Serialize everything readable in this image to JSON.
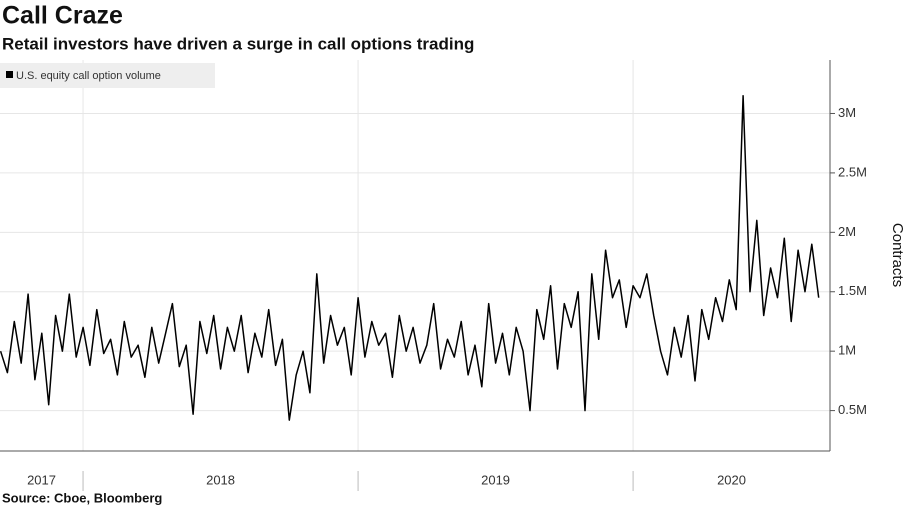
{
  "chart_data": {
    "type": "line",
    "title": "Call Craze",
    "subtitle": "Retail investors have driven a surge in call options trading",
    "y_axis_label": "Contracts",
    "source": "Source: Cboe, Bloomberg",
    "legend": "top-left",
    "grid": true,
    "xlim": [
      2017.698,
      2020.716
    ],
    "xticks": [
      2017,
      2018,
      2019,
      2020
    ],
    "ylim": [
      160000,
      3450000
    ],
    "yticks": [
      {
        "value": 500000,
        "label": "0.5M"
      },
      {
        "value": 1000000,
        "label": "1M"
      },
      {
        "value": 1500000,
        "label": "1.5M"
      },
      {
        "value": 2000000,
        "label": "2M"
      },
      {
        "value": 2500000,
        "label": "2.5M"
      },
      {
        "value": 3000000,
        "label": "3M"
      }
    ],
    "x": [
      2017.7,
      2017.725,
      2017.75,
      2017.775,
      2017.8,
      2017.825,
      2017.85,
      2017.875,
      2017.9,
      2017.925,
      2017.95,
      2017.975,
      2018.0,
      2018.025,
      2018.05,
      2018.075,
      2018.1,
      2018.125,
      2018.15,
      2018.175,
      2018.2,
      2018.225,
      2018.25,
      2018.275,
      2018.3,
      2018.325,
      2018.35,
      2018.375,
      2018.4,
      2018.425,
      2018.45,
      2018.475,
      2018.5,
      2018.525,
      2018.55,
      2018.575,
      2018.6,
      2018.625,
      2018.65,
      2018.675,
      2018.7,
      2018.725,
      2018.75,
      2018.775,
      2018.8,
      2018.825,
      2018.85,
      2018.875,
      2018.9,
      2018.925,
      2018.95,
      2018.975,
      2019.0,
      2019.025,
      2019.05,
      2019.075,
      2019.1,
      2019.125,
      2019.15,
      2019.175,
      2019.2,
      2019.225,
      2019.25,
      2019.275,
      2019.3,
      2019.325,
      2019.35,
      2019.375,
      2019.4,
      2019.425,
      2019.45,
      2019.475,
      2019.5,
      2019.525,
      2019.55,
      2019.575,
      2019.6,
      2019.625,
      2019.65,
      2019.675,
      2019.7,
      2019.725,
      2019.75,
      2019.775,
      2019.8,
      2019.825,
      2019.85,
      2019.875,
      2019.9,
      2019.925,
      2019.95,
      2019.975,
      2020.0,
      2020.025,
      2020.05,
      2020.075,
      2020.1,
      2020.125,
      2020.15,
      2020.175,
      2020.2,
      2020.225,
      2020.25,
      2020.275,
      2020.3,
      2020.325,
      2020.35,
      2020.375,
      2020.4,
      2020.425,
      2020.45,
      2020.475,
      2020.5,
      2020.525,
      2020.55,
      2020.575,
      2020.6,
      2020.625,
      2020.65,
      2020.675
    ],
    "series": [
      {
        "name": "U.S. equity call option volume",
        "color": "#000000",
        "values": [
          1000000,
          820000,
          1250000,
          900000,
          1480000,
          760000,
          1150000,
          550000,
          1300000,
          1000000,
          1480000,
          950000,
          1200000,
          880000,
          1350000,
          980000,
          1100000,
          800000,
          1250000,
          950000,
          1050000,
          780000,
          1200000,
          900000,
          1150000,
          1400000,
          870000,
          1050000,
          470000,
          1250000,
          980000,
          1300000,
          850000,
          1200000,
          1000000,
          1300000,
          820000,
          1150000,
          950000,
          1350000,
          880000,
          1100000,
          420000,
          800000,
          1000000,
          650000,
          1650000,
          900000,
          1300000,
          1050000,
          1200000,
          800000,
          1450000,
          950000,
          1250000,
          1050000,
          1150000,
          780000,
          1300000,
          1000000,
          1200000,
          900000,
          1050000,
          1400000,
          850000,
          1100000,
          950000,
          1250000,
          800000,
          1050000,
          700000,
          1400000,
          900000,
          1150000,
          800000,
          1200000,
          1000000,
          500000,
          1350000,
          1100000,
          1550000,
          850000,
          1400000,
          1200000,
          1500000,
          500000,
          1650000,
          1100000,
          1850000,
          1450000,
          1600000,
          1200000,
          1550000,
          1450000,
          1650000,
          1300000,
          1000000,
          800000,
          1200000,
          950000,
          1300000,
          750000,
          1350000,
          1100000,
          1450000,
          1250000,
          1600000,
          1350000,
          3150000,
          1500000,
          2100000,
          1300000,
          1700000,
          1450000,
          1950000,
          1250000,
          1850000,
          1500000,
          1900000,
          1450000
        ]
      }
    ]
  }
}
